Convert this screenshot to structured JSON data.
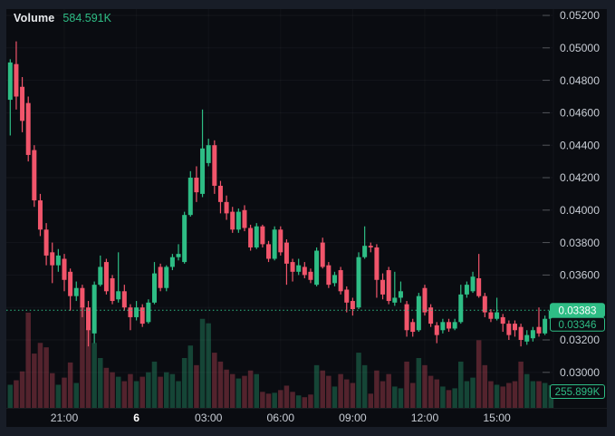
{
  "legend": {
    "label": "Volume",
    "value": "584.591K"
  },
  "badges": {
    "last_price": "0.03383",
    "secondary_price": "0.03346",
    "current_volume": "255.899K"
  },
  "colors": {
    "up": "#2EBD85",
    "down": "#F1556B",
    "bg": "#0A0C11",
    "frame": "#181D27",
    "axis_text": "#C8CDD5",
    "axis_text_bright": "#FFFFFF",
    "grid": "rgba(255,255,255,0.045)",
    "grid_vertical": "rgba(255,255,255,0.03)",
    "tick": "rgba(200,205,213,0.35)",
    "vol_up": "rgba(46,189,133,0.32)",
    "vol_down": "rgba(241,85,107,0.32)",
    "last_price_line": "#2EBD85",
    "badge_fill_text": "#FFFFFF"
  },
  "chart_data": {
    "type": "candlestick",
    "interval": "15m",
    "title": "Volume",
    "legend_value": "584.591K",
    "ylim": [
      0.0295,
      0.0525
    ],
    "grid": true,
    "price_ticks": [
      {
        "p": 0.052,
        "label": "0.05200"
      },
      {
        "p": 0.05,
        "label": "0.05000"
      },
      {
        "p": 0.048,
        "label": "0.04800"
      },
      {
        "p": 0.046,
        "label": "0.04600"
      },
      {
        "p": 0.044,
        "label": "0.04400"
      },
      {
        "p": 0.042,
        "label": "0.04200"
      },
      {
        "p": 0.04,
        "label": "0.04000"
      },
      {
        "p": 0.038,
        "label": "0.03800"
      },
      {
        "p": 0.036,
        "label": "0.03600"
      },
      {
        "p": 0.034,
        "label": ""
      },
      {
        "p": 0.032,
        "label": "0.03200"
      },
      {
        "p": 0.03,
        "label": "0.03000"
      }
    ],
    "time_ticks": [
      {
        "i": 9,
        "label": "21:00",
        "bold": false
      },
      {
        "i": 21,
        "label": "6",
        "bold": true
      },
      {
        "i": 33,
        "label": "03:00",
        "bold": false
      },
      {
        "i": 45,
        "label": "06:00",
        "bold": false
      },
      {
        "i": 57,
        "label": "09:00",
        "bold": false
      },
      {
        "i": 69,
        "label": "12:00",
        "bold": false
      },
      {
        "i": 81,
        "label": "15:00",
        "bold": false
      }
    ],
    "last_price": 0.03383,
    "candles": [
      [
        "18:45",
        0.0468,
        0.0493,
        0.0446,
        0.0491,
        260
      ],
      [
        "19:00",
        0.049,
        0.0504,
        0.0462,
        0.047,
        310
      ],
      [
        "19:15",
        0.0476,
        0.0482,
        0.0448,
        0.0455,
        410
      ],
      [
        "19:30",
        0.0466,
        0.047,
        0.043,
        0.0434,
        1070
      ],
      [
        "19:45",
        0.0437,
        0.044,
        0.0402,
        0.0406,
        610
      ],
      [
        "20:00",
        0.0406,
        0.041,
        0.0384,
        0.0388,
        730
      ],
      [
        "20:15",
        0.0388,
        0.0392,
        0.0366,
        0.0372,
        680
      ],
      [
        "20:30",
        0.0374,
        0.038,
        0.0355,
        0.0366,
        390
      ],
      [
        "20:45",
        0.0366,
        0.0376,
        0.0362,
        0.0372,
        260
      ],
      [
        "21:00",
        0.037,
        0.0373,
        0.035,
        0.0357,
        340
      ],
      [
        "21:15",
        0.0362,
        0.0364,
        0.0338,
        0.0347,
        510
      ],
      [
        "21:30",
        0.0347,
        0.0356,
        0.0344,
        0.0352,
        280
      ],
      [
        "21:45",
        0.0352,
        0.0354,
        0.0334,
        0.034,
        1140
      ],
      [
        "22:00",
        0.034,
        0.0344,
        0.0316,
        0.0326,
        890
      ],
      [
        "22:15",
        0.0324,
        0.0356,
        0.0318,
        0.0354,
        730
      ],
      [
        "22:30",
        0.0354,
        0.0372,
        0.0353,
        0.0365,
        560
      ],
      [
        "22:45",
        0.0368,
        0.037,
        0.0348,
        0.035,
        450
      ],
      [
        "23:00",
        0.0358,
        0.036,
        0.0342,
        0.0344,
        400
      ],
      [
        "23:15",
        0.0345,
        0.0374,
        0.0343,
        0.035,
        350
      ],
      [
        "23:30",
        0.035,
        0.0354,
        0.0338,
        0.034,
        300
      ],
      [
        "23:45",
        0.034,
        0.0342,
        0.0326,
        0.0334,
        380
      ],
      [
        "00:00",
        0.0334,
        0.0344,
        0.0332,
        0.034,
        300
      ],
      [
        "00:15",
        0.034,
        0.0342,
        0.0328,
        0.033,
        350
      ],
      [
        "00:30",
        0.0331,
        0.0345,
        0.033,
        0.0343,
        400
      ],
      [
        "00:45",
        0.0343,
        0.0368,
        0.0342,
        0.0361,
        520
      ],
      [
        "01:00",
        0.0365,
        0.0367,
        0.035,
        0.0352,
        350
      ],
      [
        "01:15",
        0.0352,
        0.0366,
        0.035,
        0.0365,
        400
      ],
      [
        "01:30",
        0.0365,
        0.0373,
        0.0363,
        0.0371,
        380
      ],
      [
        "01:45",
        0.0371,
        0.0379,
        0.0369,
        0.0373,
        300
      ],
      [
        "02:00",
        0.0368,
        0.0399,
        0.0367,
        0.0397,
        560
      ],
      [
        "02:15",
        0.0397,
        0.0424,
        0.0396,
        0.042,
        700
      ],
      [
        "02:30",
        0.042,
        0.0427,
        0.0405,
        0.0411,
        480
      ],
      [
        "02:45",
        0.041,
        0.0462,
        0.0408,
        0.0438,
        1000
      ],
      [
        "03:00",
        0.0429,
        0.0444,
        0.0427,
        0.044,
        950
      ],
      [
        "03:15",
        0.044,
        0.0443,
        0.041,
        0.0415,
        620
      ],
      [
        "03:30",
        0.0415,
        0.0418,
        0.0398,
        0.0405,
        520
      ],
      [
        "03:45",
        0.0405,
        0.0409,
        0.0394,
        0.0398,
        430
      ],
      [
        "04:00",
        0.0399,
        0.0402,
        0.0386,
        0.0388,
        380
      ],
      [
        "04:15",
        0.0388,
        0.0401,
        0.0386,
        0.0399,
        330
      ],
      [
        "04:30",
        0.04,
        0.0403,
        0.0387,
        0.0389,
        360
      ],
      [
        "04:45",
        0.0389,
        0.0391,
        0.0375,
        0.0377,
        420
      ],
      [
        "05:00",
        0.0377,
        0.0392,
        0.0376,
        0.039,
        380
      ],
      [
        "05:15",
        0.039,
        0.0391,
        0.0377,
        0.0379,
        180
      ],
      [
        "05:30",
        0.0379,
        0.0381,
        0.0368,
        0.037,
        160
      ],
      [
        "05:45",
        0.037,
        0.039,
        0.0369,
        0.0388,
        170
      ],
      [
        "06:00",
        0.0388,
        0.039,
        0.0372,
        0.0374,
        200
      ],
      [
        "06:15",
        0.038,
        0.0382,
        0.0354,
        0.0367,
        250
      ],
      [
        "06:30",
        0.0368,
        0.037,
        0.0356,
        0.0362,
        180
      ],
      [
        "06:45",
        0.0362,
        0.037,
        0.036,
        0.0366,
        140
      ],
      [
        "07:00",
        0.0365,
        0.0368,
        0.0358,
        0.036,
        120
      ],
      [
        "07:15",
        0.0362,
        0.0364,
        0.0355,
        0.0357,
        150
      ],
      [
        "07:30",
        0.0354,
        0.0377,
        0.0353,
        0.0375,
        480
      ],
      [
        "07:45",
        0.038,
        0.0383,
        0.0364,
        0.0365,
        420
      ],
      [
        "08:00",
        0.0366,
        0.0368,
        0.0352,
        0.0354,
        360
      ],
      [
        "08:15",
        0.0355,
        0.0362,
        0.0353,
        0.036,
        240
      ],
      [
        "08:30",
        0.0363,
        0.0365,
        0.0348,
        0.035,
        380
      ],
      [
        "08:45",
        0.0351,
        0.0353,
        0.0337,
        0.0343,
        320
      ],
      [
        "09:00",
        0.0344,
        0.0346,
        0.0335,
        0.0339,
        280
      ],
      [
        "09:15",
        0.034,
        0.0374,
        0.0339,
        0.0371,
        620
      ],
      [
        "09:30",
        0.0371,
        0.039,
        0.037,
        0.0378,
        480
      ],
      [
        "09:45",
        0.0378,
        0.038,
        0.0374,
        0.0377,
        160
      ],
      [
        "10:00",
        0.0377,
        0.0379,
        0.0346,
        0.0357,
        420
      ],
      [
        "10:15",
        0.0357,
        0.0361,
        0.0345,
        0.0348,
        300
      ],
      [
        "10:30",
        0.0363,
        0.0365,
        0.0342,
        0.0344,
        380
      ],
      [
        "10:45",
        0.0343,
        0.0362,
        0.0341,
        0.0346,
        240
      ],
      [
        "11:00",
        0.0346,
        0.0356,
        0.0343,
        0.035,
        220
      ],
      [
        "11:15",
        0.0342,
        0.0344,
        0.0322,
        0.0326,
        520
      ],
      [
        "11:30",
        0.0331,
        0.0333,
        0.0322,
        0.0325,
        280
      ],
      [
        "11:45",
        0.0326,
        0.0349,
        0.0325,
        0.0347,
        560
      ],
      [
        "12:00",
        0.0352,
        0.0354,
        0.0335,
        0.0337,
        480
      ],
      [
        "12:15",
        0.034,
        0.0342,
        0.0328,
        0.033,
        360
      ],
      [
        "12:30",
        0.0329,
        0.0331,
        0.0318,
        0.0323,
        320
      ],
      [
        "12:45",
        0.0326,
        0.0333,
        0.0324,
        0.0331,
        240
      ],
      [
        "13:00",
        0.0331,
        0.0333,
        0.0325,
        0.0327,
        200
      ],
      [
        "13:15",
        0.0327,
        0.0333,
        0.0326,
        0.0331,
        220
      ],
      [
        "13:30",
        0.0331,
        0.0354,
        0.033,
        0.0348,
        520
      ],
      [
        "13:45",
        0.0348,
        0.0356,
        0.0346,
        0.0354,
        300
      ],
      [
        "14:00",
        0.035,
        0.0362,
        0.0349,
        0.0359,
        340
      ],
      [
        "14:15",
        0.0358,
        0.0373,
        0.0346,
        0.0347,
        760
      ],
      [
        "14:30",
        0.0347,
        0.0349,
        0.0334,
        0.0337,
        480
      ],
      [
        "14:45",
        0.0337,
        0.0339,
        0.0331,
        0.0333,
        300
      ],
      [
        "15:00",
        0.0333,
        0.0346,
        0.0332,
        0.0337,
        260
      ],
      [
        "15:15",
        0.0334,
        0.0336,
        0.0325,
        0.033,
        240
      ],
      [
        "15:30",
        0.033,
        0.0332,
        0.032,
        0.0323,
        280
      ],
      [
        "15:45",
        0.033,
        0.0332,
        0.0322,
        0.0326,
        300
      ],
      [
        "16:00",
        0.0328,
        0.033,
        0.0316,
        0.032,
        520
      ],
      [
        "16:15",
        0.0319,
        0.0326,
        0.0317,
        0.0323,
        380
      ],
      [
        "16:30",
        0.0321,
        0.0328,
        0.0319,
        0.0326,
        300
      ],
      [
        "16:45",
        0.0328,
        0.034,
        0.0322,
        0.0324,
        300
      ],
      [
        "17:00",
        0.0324,
        0.0335,
        0.0323,
        0.0333,
        280
      ],
      [
        "17:15",
        0.0333,
        0.0339,
        0.0331,
        0.0338,
        255.899
      ]
    ]
  }
}
